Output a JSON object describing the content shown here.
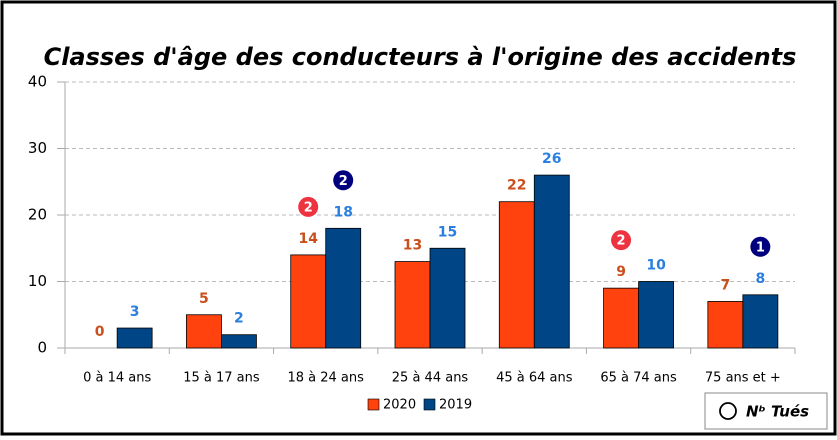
{
  "chart_data": {
    "type": "bar",
    "title": "Classes d'âge des conducteurs à l'origine des accidents",
    "categories": [
      "0 à 14 ans",
      "15 à 17 ans",
      "18 à 24 ans",
      "25 à 44 ans",
      "45 à 64 ans",
      "65 à 74 ans",
      "75 ans et +"
    ],
    "series": [
      {
        "name": "2020",
        "color": "#ff420e",
        "label_color": "#c9501c",
        "values": [
          0,
          5,
          14,
          13,
          22,
          9,
          7
        ]
      },
      {
        "name": "2019",
        "color": "#004586",
        "label_color": "#2a7fe0",
        "values": [
          3,
          2,
          18,
          15,
          26,
          10,
          8
        ]
      }
    ],
    "deaths": {
      "name": "Nᵇ Tués",
      "series": [
        {
          "color": "#ee3340",
          "values": [
            null,
            null,
            2,
            null,
            null,
            2,
            null
          ]
        },
        {
          "color": "#00007f",
          "values": [
            null,
            null,
            2,
            null,
            null,
            null,
            1
          ]
        }
      ]
    },
    "ylim": [
      0,
      40
    ],
    "yticks": [
      0,
      10,
      20,
      30,
      40
    ],
    "grid": true,
    "legend": "bottom"
  }
}
